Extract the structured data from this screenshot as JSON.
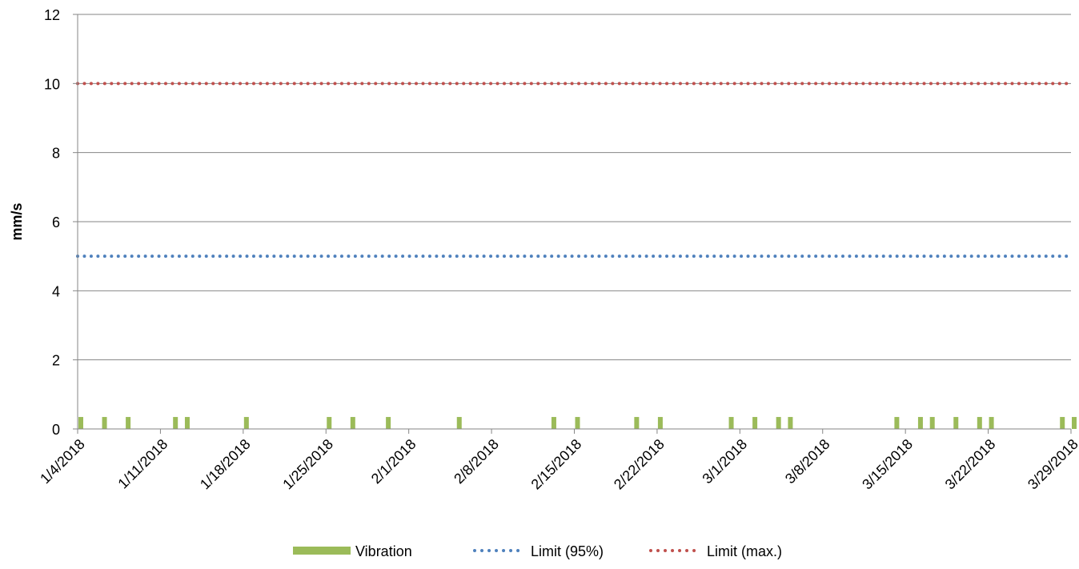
{
  "chart_data": {
    "type": "bar",
    "title": "",
    "xlabel": "",
    "ylabel": "mm/s",
    "ylim": [
      0,
      12
    ],
    "yticks": [
      0,
      2,
      4,
      6,
      8,
      10,
      12
    ],
    "xlim": [
      "2018-01-04",
      "2018-03-29"
    ],
    "xtick_labels": [
      "1/4/2018",
      "1/11/2018",
      "1/18/2018",
      "1/25/2018",
      "2/1/2018",
      "2/8/2018",
      "2/15/2018",
      "2/22/2018",
      "3/1/2018",
      "3/8/2018",
      "3/15/2018",
      "3/22/2018",
      "3/29/2018"
    ],
    "grid": "horizontal",
    "legend_position": "bottom",
    "series": [
      {
        "name": "Vibration",
        "type": "bar",
        "color": "#9BBB59",
        "x": [
          "2018-01-04",
          "2018-01-06",
          "2018-01-08",
          "2018-01-12",
          "2018-01-13",
          "2018-01-18",
          "2018-01-25",
          "2018-01-27",
          "2018-01-30",
          "2018-02-05",
          "2018-02-13",
          "2018-02-15",
          "2018-02-20",
          "2018-02-22",
          "2018-02-28",
          "2018-03-02",
          "2018-03-04",
          "2018-03-05",
          "2018-03-14",
          "2018-03-16",
          "2018-03-17",
          "2018-03-19",
          "2018-03-21",
          "2018-03-22",
          "2018-03-28",
          "2018-03-29"
        ],
        "values": [
          0.3,
          0.3,
          0.3,
          0.3,
          0.3,
          0.3,
          0.3,
          0.3,
          0.3,
          0.3,
          0.3,
          0.3,
          0.3,
          0.3,
          0.3,
          0.3,
          0.3,
          0.3,
          0.3,
          0.3,
          0.3,
          0.3,
          0.3,
          0.3,
          0.3,
          0.3
        ]
      },
      {
        "name": "Limit (95%)",
        "type": "line",
        "style": "dotted",
        "color": "#4F81BD",
        "x": [
          "2018-01-04",
          "2018-03-29"
        ],
        "values": [
          5,
          5
        ]
      },
      {
        "name": "Limit (max.)",
        "type": "line",
        "style": "dotted",
        "color": "#C0504D",
        "x": [
          "2018-01-04",
          "2018-03-29"
        ],
        "values": [
          10,
          10
        ]
      }
    ]
  }
}
